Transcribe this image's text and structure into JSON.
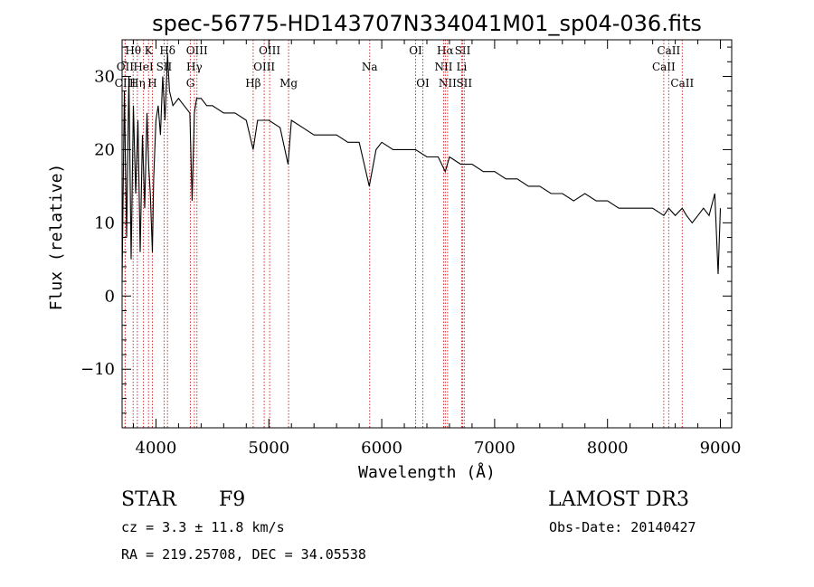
{
  "chart_data": {
    "type": "line",
    "title": "spec-56775-HD143707N334041M01_sp04-036.fits",
    "xlabel": "Wavelength (Å)",
    "ylabel": "Flux (relative)",
    "xlim": [
      3700,
      9100
    ],
    "ylim": [
      -18,
      35
    ],
    "xticks": [
      4000,
      5000,
      6000,
      7000,
      8000,
      9000
    ],
    "yticks": [
      -10,
      0,
      10,
      20,
      30
    ],
    "series": [
      {
        "name": "flux",
        "x": [
          3700,
          3720,
          3740,
          3760,
          3780,
          3800,
          3820,
          3840,
          3860,
          3880,
          3900,
          3920,
          3935,
          3950,
          3968,
          3980,
          4000,
          4020,
          4040,
          4060,
          4080,
          4102,
          4120,
          4150,
          4200,
          4250,
          4300,
          4320,
          4340,
          4360,
          4400,
          4450,
          4500,
          4600,
          4700,
          4800,
          4861,
          4900,
          5000,
          5100,
          5170,
          5200,
          5300,
          5400,
          5500,
          5600,
          5700,
          5800,
          5890,
          5950,
          6000,
          6100,
          6200,
          6300,
          6400,
          6500,
          6563,
          6600,
          6700,
          6800,
          6900,
          7000,
          7100,
          7200,
          7300,
          7400,
          7500,
          7600,
          7700,
          7800,
          7900,
          8000,
          8100,
          8200,
          8300,
          8400,
          8498,
          8542,
          8600,
          8662,
          8700,
          8750,
          8800,
          8850,
          8900,
          8950,
          8980,
          9000
        ],
        "y": [
          2,
          28,
          8,
          30,
          5,
          26,
          14,
          24,
          6,
          22,
          12,
          25,
          18,
          14,
          6,
          16,
          24,
          26,
          22,
          30,
          24,
          33,
          28,
          26,
          27,
          26,
          25,
          13,
          25,
          27,
          27,
          26,
          26,
          25,
          25,
          24,
          20,
          24,
          24,
          23,
          18,
          24,
          23,
          22,
          22,
          22,
          21,
          21,
          15,
          20,
          21,
          20,
          20,
          20,
          19,
          19,
          17,
          19,
          18,
          18,
          17,
          17,
          16,
          16,
          15,
          15,
          14,
          14,
          13,
          14,
          13,
          13,
          12,
          12,
          12,
          12,
          11,
          12,
          11,
          12,
          11,
          10,
          11,
          12,
          11,
          14,
          3,
          12
        ]
      }
    ],
    "lines": [
      {
        "label": "Hθ",
        "wavelength": 3798,
        "row": 1
      },
      {
        "label": "OII",
        "wavelength": 3727,
        "row": 2
      },
      {
        "label": "CIII",
        "wavelength": 3727,
        "row": 3
      },
      {
        "label": "K",
        "wavelength": 3934,
        "row": 1
      },
      {
        "label": "HeI",
        "wavelength": 3889,
        "row": 2
      },
      {
        "label": "Hη",
        "wavelength": 3835,
        "row": 3
      },
      {
        "label": "Hδ",
        "wavelength": 4102,
        "row": 1
      },
      {
        "label": "SII",
        "wavelength": 4072,
        "row": 2
      },
      {
        "label": "H",
        "wavelength": 3968,
        "row": 3
      },
      {
        "label": "OIII",
        "wavelength": 4363,
        "row": 1
      },
      {
        "label": "Hγ",
        "wavelength": 4340,
        "row": 2
      },
      {
        "label": "G",
        "wavelength": 4305,
        "row": 3
      },
      {
        "label": "OIII",
        "wavelength": 5007,
        "row": 1
      },
      {
        "label": "OIII",
        "wavelength": 4959,
        "row": 2
      },
      {
        "label": "Hβ",
        "wavelength": 4861,
        "row": 3
      },
      {
        "label": "Mg",
        "wavelength": 5175,
        "row": 3
      },
      {
        "label": "Na",
        "wavelength": 5893,
        "row": 2
      },
      {
        "label": "OI",
        "wavelength": 6300,
        "row": 1
      },
      {
        "label": "OI",
        "wavelength": 6364,
        "row": 3
      },
      {
        "label": "Hα",
        "wavelength": 6563,
        "row": 1
      },
      {
        "label": "NII",
        "wavelength": 6548,
        "row": 2
      },
      {
        "label": "NII",
        "wavelength": 6583,
        "row": 3
      },
      {
        "label": "SII",
        "wavelength": 6717,
        "row": 1
      },
      {
        "label": "Li",
        "wavelength": 6708,
        "row": 2
      },
      {
        "label": "SII",
        "wavelength": 6731,
        "row": 3
      },
      {
        "label": "CaII",
        "wavelength": 8542,
        "row": 1
      },
      {
        "label": "CaII",
        "wavelength": 8498,
        "row": 2
      },
      {
        "label": "CaII",
        "wavelength": 8662,
        "row": 3
      }
    ]
  },
  "info": {
    "class": "STAR",
    "subclass": "F9",
    "survey": "LAMOST DR3",
    "cz": "cz = 3.3 ± 11.8 km/s",
    "obs_date": "Obs-Date: 20140427",
    "coords": "RA = 219.25708, DEC =  34.05538"
  },
  "colors": {
    "line_marker": "#cc3333",
    "spectrum": "#000000",
    "background": "#ffffff"
  }
}
